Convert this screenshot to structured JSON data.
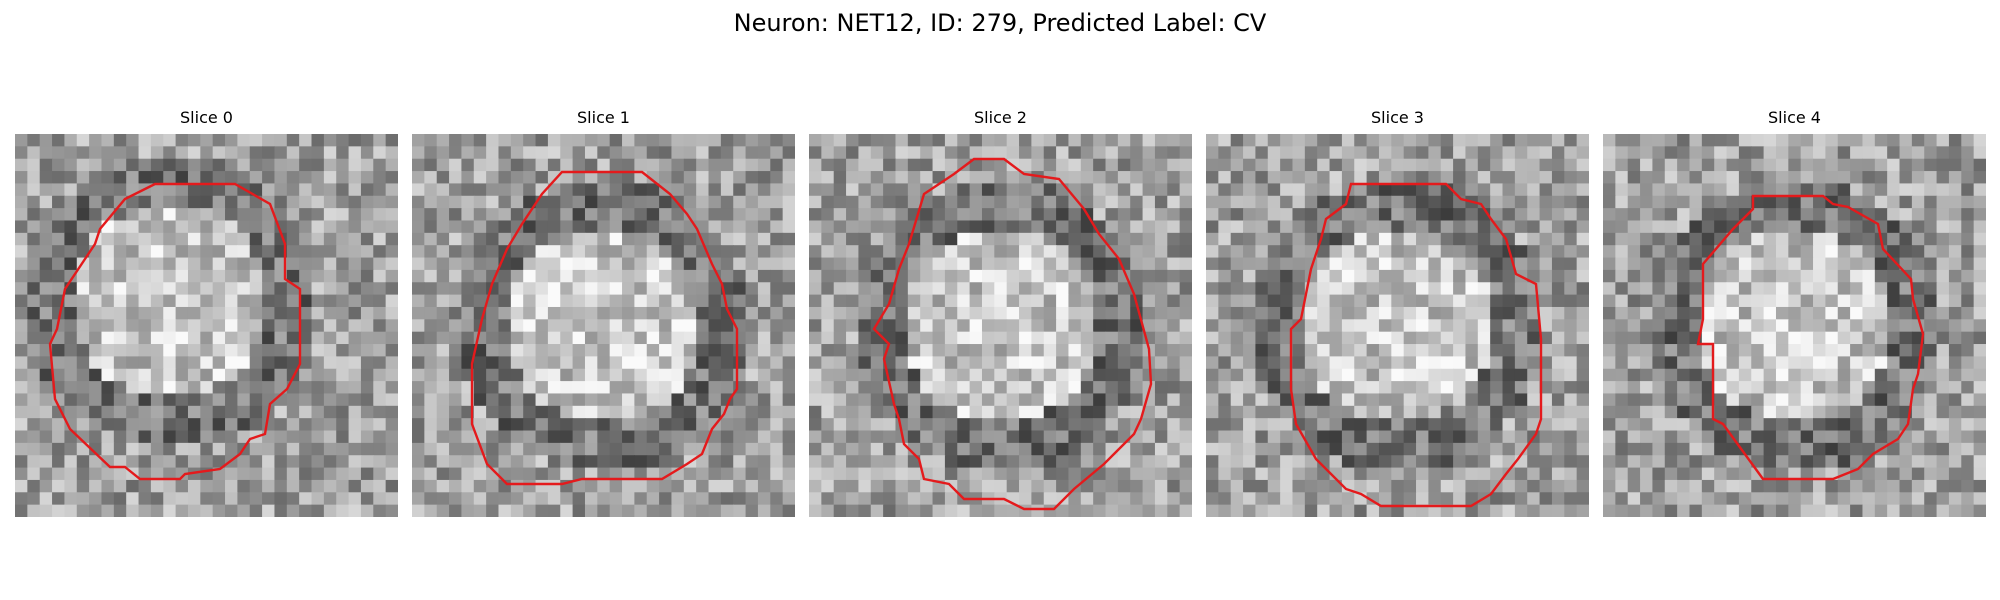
{
  "figure": {
    "title": "Neuron: NET12, ID: 279, Predicted Label: CV"
  },
  "panels": [
    {
      "title": "Slice 0",
      "image": "grayscale-microscopy-patch",
      "outline_color": "#e41a1c",
      "ring_variant": 0
    },
    {
      "title": "Slice 1",
      "image": "grayscale-microscopy-patch",
      "outline_color": "#e41a1c",
      "ring_variant": 1
    },
    {
      "title": "Slice 2",
      "image": "grayscale-microscopy-patch",
      "outline_color": "#e41a1c",
      "ring_variant": 2
    },
    {
      "title": "Slice 3",
      "image": "grayscale-microscopy-patch",
      "outline_color": "#e41a1c",
      "ring_variant": 3
    },
    {
      "title": "Slice 4",
      "image": "grayscale-microscopy-patch",
      "outline_color": "#e41a1c",
      "ring_variant": 4
    }
  ]
}
